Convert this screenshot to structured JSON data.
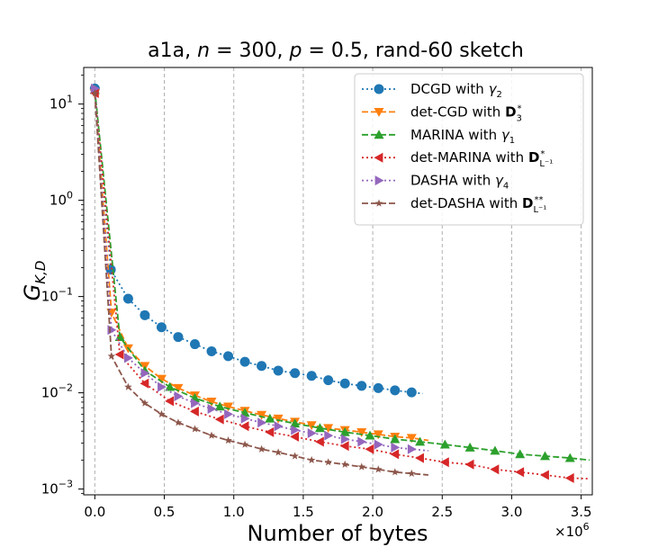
{
  "chart_data": {
    "type": "line",
    "title": "a1a, n = 300, p = 0.5, rand-60 sketch",
    "title_parts": {
      "prefix": "a1a, ",
      "n_sym": "n",
      "n_val": " = 300, ",
      "p_sym": "p",
      "p_val": " = 0.5, rand-60 sketch"
    },
    "xlabel": "Number of bytes",
    "ylabel": "G",
    "ylabel_sub": "K,D",
    "x_multiplier_label": "×10",
    "x_multiplier_exp": "6",
    "xlim": [
      -0.08,
      3.58
    ],
    "ylim_log10": [
      -3.06,
      1.38
    ],
    "x_ticks": [
      {
        "value": 0.0,
        "label": "0.0"
      },
      {
        "value": 0.5,
        "label": "0.5"
      },
      {
        "value": 1.0,
        "label": "1.0"
      },
      {
        "value": 1.5,
        "label": "1.5"
      },
      {
        "value": 2.0,
        "label": "2.0"
      },
      {
        "value": 2.5,
        "label": "2.5"
      },
      {
        "value": 3.0,
        "label": "3.0"
      },
      {
        "value": 3.5,
        "label": "3.5"
      }
    ],
    "y_ticks": [
      {
        "exp": 1,
        "base": "10",
        "sup": "1"
      },
      {
        "exp": 0,
        "base": "10",
        "sup": "0"
      },
      {
        "exp": -1,
        "base": "10",
        "sup": "−1"
      },
      {
        "exp": -2,
        "base": "10",
        "sup": "−2"
      },
      {
        "exp": -3,
        "base": "10",
        "sup": "−3"
      }
    ],
    "grid": "vertical dashed",
    "legend_position": "top-right",
    "series": [
      {
        "name": "DCGD with γ2",
        "label_main": "DCGD with ",
        "label_sym": "γ",
        "label_sub": "2",
        "label_sup": "",
        "color": "#1f77b4",
        "linestyle": "dotted",
        "marker": "circle",
        "x": [
          0.0,
          0.115,
          0.24,
          0.36,
          0.48,
          0.6,
          0.72,
          0.84,
          0.96,
          1.08,
          1.2,
          1.32,
          1.44,
          1.56,
          1.68,
          1.8,
          1.92,
          2.04,
          2.16,
          2.28
        ],
        "y": [
          14.5,
          0.19,
          0.095,
          0.064,
          0.048,
          0.038,
          0.032,
          0.027,
          0.024,
          0.021,
          0.019,
          0.017,
          0.016,
          0.015,
          0.0135,
          0.0125,
          0.0118,
          0.0112,
          0.0106,
          0.0101
        ],
        "x_end": 2.36,
        "y_end": 0.0098
      },
      {
        "name": "det-CGD with D3*",
        "label_main": "det-CGD with ",
        "label_sym": "D",
        "label_sub": "3",
        "label_sup": "*",
        "color": "#ff7f0e",
        "linestyle": "dashed",
        "marker": "triangle-down",
        "x": [
          0.0,
          0.12,
          0.24,
          0.36,
          0.48,
          0.6,
          0.72,
          0.84,
          0.96,
          1.08,
          1.2,
          1.32,
          1.44,
          1.56,
          1.68,
          1.8,
          1.92,
          2.04,
          2.16,
          2.28
        ],
        "y": [
          13.0,
          0.068,
          0.029,
          0.019,
          0.014,
          0.0112,
          0.0094,
          0.0081,
          0.0072,
          0.0065,
          0.0059,
          0.0054,
          0.005,
          0.0046,
          0.0043,
          0.0041,
          0.0039,
          0.0037,
          0.0035,
          0.0034
        ],
        "x_end": 2.4,
        "y_end": 0.0032
      },
      {
        "name": "MARINA with γ1",
        "label_main": "MARINA with ",
        "label_sym": "γ",
        "label_sub": "1",
        "label_sup": "",
        "color": "#2ca02c",
        "linestyle": "dashed",
        "marker": "triangle-up",
        "x": [
          0.0,
          0.18,
          0.36,
          0.54,
          0.72,
          0.9,
          1.08,
          1.26,
          1.44,
          1.62,
          1.8,
          1.98,
          2.16,
          2.34,
          2.52,
          2.7,
          2.88,
          3.06,
          3.24,
          3.42
        ],
        "y": [
          14.0,
          0.038,
          0.017,
          0.0115,
          0.0088,
          0.0072,
          0.0062,
          0.0054,
          0.0048,
          0.0043,
          0.0039,
          0.0036,
          0.0033,
          0.0031,
          0.0029,
          0.0027,
          0.0025,
          0.0023,
          0.0022,
          0.0021
        ],
        "x_end": 3.56,
        "y_end": 0.002
      },
      {
        "name": "det-MARINA with DL−1*",
        "label_main": "det-MARINA with ",
        "label_sym": "D",
        "label_sub": "L⁻¹",
        "label_sup": "*",
        "color": "#d62728",
        "linestyle": "dotted",
        "marker": "triangle-left",
        "x": [
          0.0,
          0.18,
          0.36,
          0.54,
          0.72,
          0.9,
          1.08,
          1.26,
          1.44,
          1.62,
          1.8,
          1.98,
          2.16,
          2.34,
          2.52,
          2.7,
          2.88,
          3.06,
          3.24,
          3.42
        ],
        "y": [
          13.0,
          0.025,
          0.0125,
          0.0082,
          0.0064,
          0.0053,
          0.0045,
          0.0039,
          0.0035,
          0.0031,
          0.0028,
          0.0026,
          0.0023,
          0.0021,
          0.0019,
          0.0018,
          0.0016,
          0.0015,
          0.0014,
          0.0013
        ],
        "x_end": 3.56,
        "y_end": 0.00128
      },
      {
        "name": "DASHA with γ4",
        "label_main": "DASHA with ",
        "label_sym": "γ",
        "label_sub": "4",
        "label_sup": "",
        "color": "#9467bd",
        "linestyle": "dotted",
        "marker": "triangle-right",
        "x": [
          0.0,
          0.12,
          0.24,
          0.36,
          0.48,
          0.6,
          0.72,
          0.84,
          0.96,
          1.08,
          1.2,
          1.32,
          1.44,
          1.56,
          1.68,
          1.8,
          1.92,
          2.04,
          2.16,
          2.28
        ],
        "y": [
          14.5,
          0.045,
          0.023,
          0.016,
          0.0115,
          0.0092,
          0.0078,
          0.0068,
          0.006,
          0.0054,
          0.0049,
          0.0045,
          0.0041,
          0.0038,
          0.0036,
          0.0033,
          0.0031,
          0.0029,
          0.0027,
          0.0026
        ],
        "x_end": 2.4,
        "y_end": 0.0025
      },
      {
        "name": "det-DASHA with DL−1**",
        "label_main": "det-DASHA with ",
        "label_sym": "D",
        "label_sub": "L⁻¹",
        "label_sup": "**",
        "color": "#8c564b",
        "linestyle": "dashed",
        "marker": "star",
        "x": [
          0.0,
          0.12,
          0.24,
          0.36,
          0.48,
          0.6,
          0.72,
          0.84,
          0.96,
          1.08,
          1.2,
          1.32,
          1.44,
          1.56,
          1.68,
          1.8,
          1.92,
          2.04,
          2.16,
          2.28
        ],
        "y": [
          13.0,
          0.024,
          0.0115,
          0.0078,
          0.006,
          0.0049,
          0.0042,
          0.0036,
          0.0032,
          0.0029,
          0.0026,
          0.0024,
          0.0022,
          0.002,
          0.0019,
          0.0018,
          0.0017,
          0.0016,
          0.0015,
          0.00145
        ],
        "x_end": 2.4,
        "y_end": 0.0014
      }
    ]
  }
}
